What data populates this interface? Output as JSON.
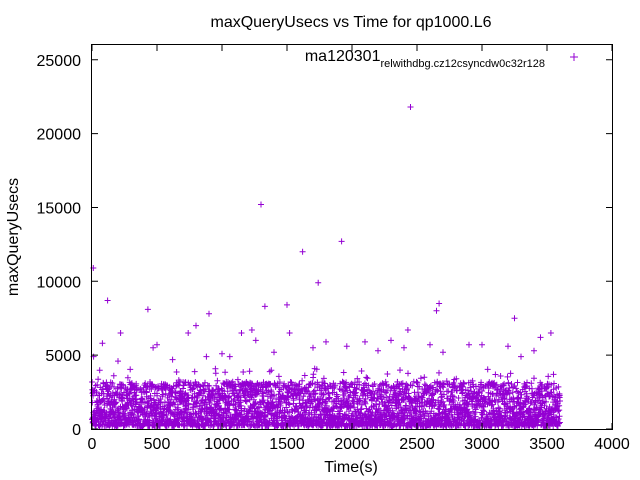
{
  "chart_data": {
    "type": "scatter",
    "title": "maxQueryUsecs vs Time for qp1000.L6",
    "xlabel": "Time(s)",
    "ylabel": "maxQueryUsecs",
    "xlim": [
      0,
      4000
    ],
    "ylim": [
      0,
      26000
    ],
    "xticks": [
      0,
      500,
      1000,
      1500,
      2000,
      2500,
      3000,
      3500,
      4000
    ],
    "yticks": [
      0,
      5000,
      10000,
      15000,
      20000,
      25000
    ],
    "grid": false,
    "legend_position": "top-right",
    "marker": "plus",
    "series": [
      {
        "name": "ma120301_rel_withdbg.cz12c_sync_dw0_c32r128",
        "color": "#9400d3",
        "duration": 3600,
        "sample_interval": 1,
        "typical_range": [
          200,
          3200
        ],
        "outliers": [
          [
            10,
            10900
          ],
          [
            12,
            4900
          ],
          [
            80,
            5800
          ],
          [
            120,
            8700
          ],
          [
            200,
            4600
          ],
          [
            220,
            6500
          ],
          [
            430,
            8100
          ],
          [
            470,
            5500
          ],
          [
            500,
            5700
          ],
          [
            620,
            4700
          ],
          [
            740,
            6500
          ],
          [
            800,
            7000
          ],
          [
            880,
            4900
          ],
          [
            900,
            7800
          ],
          [
            1000,
            5100
          ],
          [
            1060,
            4900
          ],
          [
            1150,
            6500
          ],
          [
            1230,
            6700
          ],
          [
            1260,
            6000
          ],
          [
            1300,
            15200
          ],
          [
            1330,
            8300
          ],
          [
            1400,
            5200
          ],
          [
            1500,
            8400
          ],
          [
            1520,
            6500
          ],
          [
            1620,
            12000
          ],
          [
            1700,
            5500
          ],
          [
            1740,
            9900
          ],
          [
            1800,
            5900
          ],
          [
            1920,
            12700
          ],
          [
            1960,
            5600
          ],
          [
            2100,
            5900
          ],
          [
            2200,
            5300
          ],
          [
            2300,
            6000
          ],
          [
            2400,
            5500
          ],
          [
            2430,
            6700
          ],
          [
            2450,
            21800
          ],
          [
            2600,
            5700
          ],
          [
            2650,
            8000
          ],
          [
            2670,
            8500
          ],
          [
            2700,
            5200
          ],
          [
            2900,
            5700
          ],
          [
            3000,
            5700
          ],
          [
            3200,
            5600
          ],
          [
            3250,
            7500
          ],
          [
            3300,
            4900
          ],
          [
            3400,
            5300
          ],
          [
            3450,
            6200
          ],
          [
            3530,
            6500
          ]
        ]
      }
    ]
  }
}
